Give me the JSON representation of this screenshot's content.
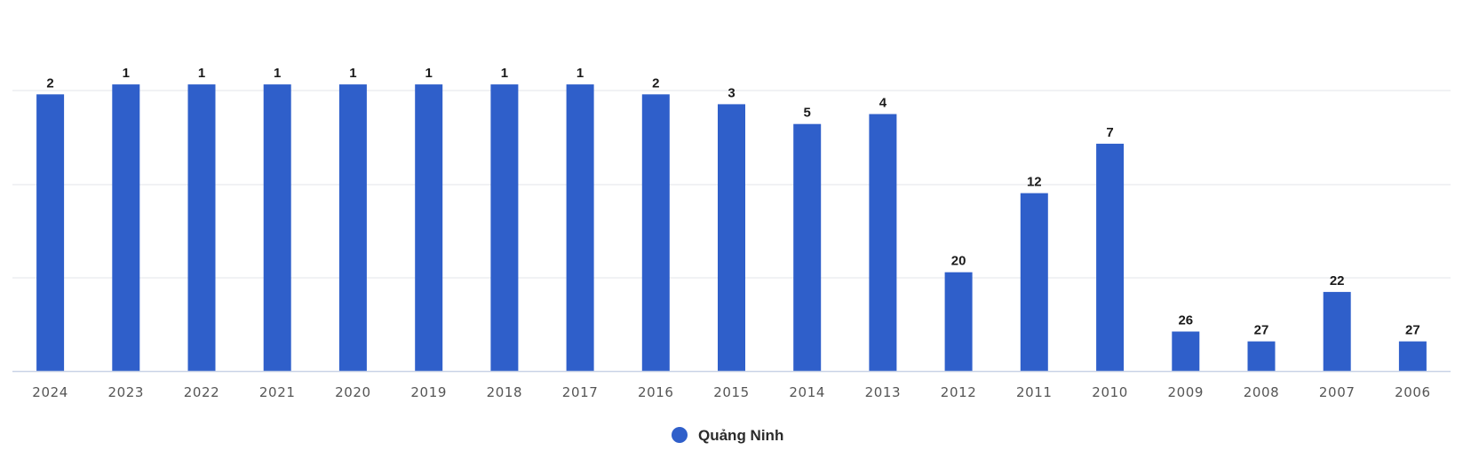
{
  "chart_data": {
    "type": "bar",
    "title": "",
    "xlabel": "",
    "ylabel": "",
    "y_axis_reversed": true,
    "y_axis_labels_visible": false,
    "ylim": [
      0,
      30
    ],
    "grid": true,
    "legend_position": "bottom-center",
    "categories": [
      "2024",
      "2023",
      "2022",
      "2021",
      "2020",
      "2019",
      "2018",
      "2017",
      "2016",
      "2015",
      "2014",
      "2013",
      "2012",
      "2011",
      "2010",
      "2009",
      "2008",
      "2007",
      "2006"
    ],
    "series": [
      {
        "name": "Quảng Ninh",
        "color": "#2f5fca",
        "values": [
          2,
          1,
          1,
          1,
          1,
          1,
          1,
          1,
          2,
          3,
          5,
          4,
          20,
          12,
          7,
          26,
          27,
          22,
          27
        ]
      }
    ]
  }
}
